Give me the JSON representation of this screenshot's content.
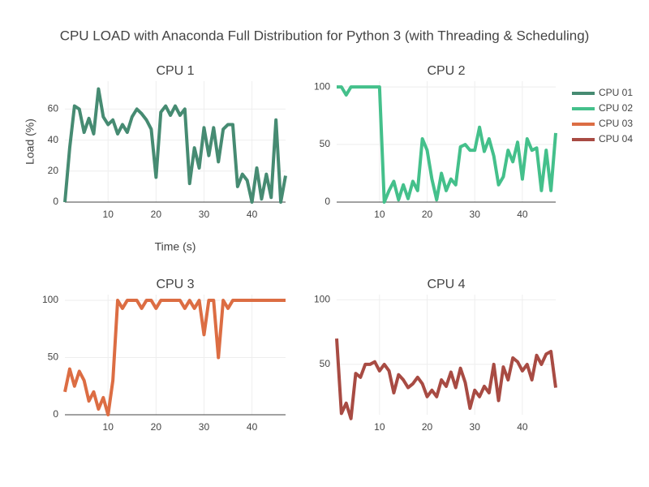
{
  "title": "CPU LOAD with Anaconda Full Distribution for Python 3 (with Threading & Scheduling)",
  "chart_data": [
    {
      "type": "line",
      "title": "CPU 1",
      "x_label": "Time (s)",
      "y_label": "Load (%)",
      "x": [
        1,
        2,
        3,
        4,
        5,
        6,
        7,
        8,
        9,
        10,
        11,
        12,
        13,
        14,
        15,
        16,
        17,
        18,
        19,
        20,
        21,
        22,
        23,
        24,
        25,
        26,
        27,
        28,
        29,
        30,
        31,
        32,
        33,
        34,
        35,
        36,
        37,
        38,
        39,
        40,
        41,
        42,
        43,
        44,
        45,
        46,
        47
      ],
      "series": [
        {
          "name": "CPU 01",
          "color": "#468b72",
          "values": [
            0,
            35,
            62,
            60,
            45,
            54,
            44,
            73,
            55,
            50,
            53,
            44,
            50,
            45,
            55,
            60,
            57,
            53,
            47,
            16,
            58,
            62,
            56,
            62,
            56,
            60,
            12,
            35,
            22,
            48,
            30,
            48,
            26,
            47,
            50,
            50,
            10,
            18,
            14,
            0,
            22,
            2,
            18,
            3,
            53,
            0,
            17
          ]
        }
      ],
      "xlim": [
        1,
        47
      ],
      "ylim": [
        0,
        78
      ],
      "xticks": [
        10,
        20,
        30,
        40
      ],
      "yticks": [
        0,
        20,
        40,
        60
      ],
      "grid": true
    },
    {
      "type": "line",
      "title": "CPU 2",
      "x": [
        1,
        2,
        3,
        4,
        5,
        6,
        7,
        8,
        9,
        10,
        11,
        12,
        13,
        14,
        15,
        16,
        17,
        18,
        19,
        20,
        21,
        22,
        23,
        24,
        25,
        26,
        27,
        28,
        29,
        30,
        31,
        32,
        33,
        34,
        35,
        36,
        37,
        38,
        39,
        40,
        41,
        42,
        43,
        44,
        45,
        46,
        47
      ],
      "series": [
        {
          "name": "CPU 02",
          "color": "#44c08b",
          "values": [
            100,
            100,
            93,
            100,
            100,
            100,
            100,
            100,
            100,
            100,
            0,
            10,
            18,
            2,
            15,
            3,
            18,
            10,
            55,
            45,
            20,
            2,
            25,
            10,
            20,
            15,
            48,
            50,
            45,
            45,
            65,
            44,
            55,
            40,
            15,
            22,
            45,
            35,
            52,
            20,
            55,
            45,
            47,
            10,
            45,
            10,
            60
          ]
        }
      ],
      "xlim": [
        1,
        47
      ],
      "ylim": [
        0,
        105
      ],
      "xticks": [
        10,
        20,
        30,
        40
      ],
      "yticks": [
        0,
        50,
        100
      ],
      "grid": true
    },
    {
      "type": "line",
      "title": "CPU 3",
      "x": [
        1,
        2,
        3,
        4,
        5,
        6,
        7,
        8,
        9,
        10,
        11,
        12,
        13,
        14,
        15,
        16,
        17,
        18,
        19,
        20,
        21,
        22,
        23,
        24,
        25,
        26,
        27,
        28,
        29,
        30,
        31,
        32,
        33,
        34,
        35,
        36,
        37,
        38,
        39,
        40,
        41,
        42,
        43,
        44,
        45,
        46,
        47
      ],
      "series": [
        {
          "name": "CPU 03",
          "color": "#dc6d43",
          "values": [
            20,
            40,
            25,
            38,
            30,
            12,
            20,
            5,
            15,
            0,
            30,
            100,
            93,
            100,
            100,
            100,
            93,
            100,
            100,
            93,
            100,
            100,
            100,
            100,
            100,
            93,
            100,
            93,
            100,
            70,
            100,
            100,
            50,
            100,
            93,
            100,
            100,
            100,
            100,
            100,
            100,
            100,
            100,
            100,
            100,
            100,
            100
          ]
        }
      ],
      "xlim": [
        1,
        47
      ],
      "ylim": [
        0,
        105
      ],
      "xticks": [
        10,
        20,
        30,
        40
      ],
      "yticks": [
        0,
        50,
        100
      ],
      "grid": true
    },
    {
      "type": "line",
      "title": "CPU 4",
      "x": [
        1,
        2,
        3,
        4,
        5,
        6,
        7,
        8,
        9,
        10,
        11,
        12,
        13,
        14,
        15,
        16,
        17,
        18,
        19,
        20,
        21,
        22,
        23,
        24,
        25,
        26,
        27,
        28,
        29,
        30,
        31,
        32,
        33,
        34,
        35,
        36,
        37,
        38,
        39,
        40,
        41,
        42,
        43,
        44,
        45,
        46,
        47
      ],
      "series": [
        {
          "name": "CPU 04",
          "color": "#a84b43",
          "values": [
            70,
            12,
            20,
            8,
            43,
            40,
            50,
            50,
            52,
            45,
            50,
            45,
            28,
            42,
            38,
            32,
            35,
            40,
            35,
            25,
            30,
            25,
            38,
            33,
            44,
            32,
            47,
            36,
            16,
            30,
            25,
            33,
            28,
            50,
            22,
            48,
            38,
            55,
            52,
            45,
            50,
            38,
            57,
            50,
            58,
            60,
            32
          ]
        }
      ],
      "xlim": [
        1,
        47
      ],
      "ylim": [
        11,
        104
      ],
      "xticks": [
        10,
        20,
        30,
        40
      ],
      "yticks": [
        50,
        100
      ],
      "grid": true
    }
  ]
}
